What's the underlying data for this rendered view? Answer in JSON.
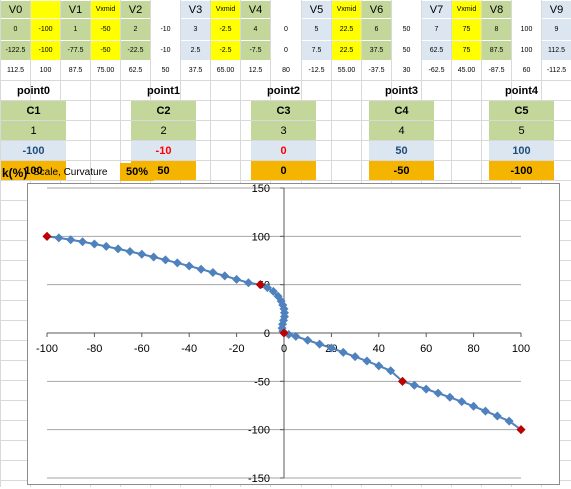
{
  "colors": {
    "green": "#c4d79b",
    "yellow": "#ffff00",
    "blue": "#dce6f1",
    "white": "#ffffff",
    "orange": "#f5b400",
    "gridline": "#d9d9d9",
    "series_blue": "#4f81bd",
    "marker_red": "#c00000",
    "neg_red": "#ff0000",
    "blue_text": "#1f4e79"
  },
  "vtable": {
    "headers": [
      "V0",
      "",
      "V1",
      "Vxmid",
      "V2",
      "",
      "V3",
      "Vxmid",
      "V4",
      "",
      "V5",
      "Vxmid",
      "V6",
      "",
      "V7",
      "Vxmid",
      "V8",
      "",
      "V9"
    ],
    "col_colors": [
      "green",
      "yellow",
      "green",
      "yellow",
      "green",
      "white",
      "blue",
      "yellow",
      "green",
      "white",
      "blue",
      "yellow",
      "green",
      "white",
      "blue",
      "yellow",
      "green",
      "white",
      "blue"
    ],
    "rows": [
      [
        "0",
        "-100",
        "1",
        "-50",
        "2",
        "-10",
        "3",
        "-2.5",
        "4",
        "0",
        "5",
        "22.5",
        "6",
        "50",
        "7",
        "75",
        "8",
        "100",
        "9"
      ],
      [
        "-122.5",
        "-100",
        "-77.5",
        "-50",
        "-22.5",
        "-10",
        "2.5",
        "-2.5",
        "-7.5",
        "0",
        "7.5",
        "22.5",
        "37.5",
        "50",
        "62.5",
        "75",
        "87.5",
        "100",
        "112.5"
      ],
      [
        "112.5",
        "100",
        "87.5",
        "75.00",
        "62.5",
        "50",
        "37.5",
        "65.00",
        "12.5",
        "80",
        "-12.5",
        "55.00",
        "-37.5",
        "30",
        "-62.5",
        "45.00",
        "-87.5",
        "60",
        "-112.5"
      ]
    ]
  },
  "points": [
    {
      "name": "point0",
      "c": "C1",
      "idx": "1",
      "x": "-100",
      "y": "100",
      "x_color": "blue_text"
    },
    {
      "name": "point1",
      "c": "C2",
      "idx": "2",
      "x": "-10",
      "y": "50",
      "x_color": "neg_red"
    },
    {
      "name": "point2",
      "c": "C3",
      "idx": "3",
      "x": "0",
      "y": "0",
      "x_color": "neg_red"
    },
    {
      "name": "point3",
      "c": "C4",
      "idx": "4",
      "x": "50",
      "y": "-50",
      "x_color": "blue_text"
    },
    {
      "name": "point4",
      "c": "C5",
      "idx": "5",
      "x": "100",
      "y": "-100",
      "x_color": "blue_text"
    }
  ],
  "k_control": {
    "label": "k(%)",
    "description": "Scale, Curvature",
    "value": "50%"
  },
  "chart_data": {
    "type": "scatter",
    "xlim": [
      -100,
      100
    ],
    "ylim": [
      -150,
      150
    ],
    "xticks": [
      "-100",
      "-80",
      "-60",
      "-40",
      "-20",
      "0",
      "20",
      "40",
      "60",
      "80",
      "100"
    ],
    "yticks": [
      "150",
      "100",
      "50",
      "0",
      "-50",
      "-100",
      "-150"
    ],
    "grid": "horizontal",
    "control_points": [
      [
        -100,
        100
      ],
      [
        -10,
        50
      ],
      [
        0,
        0
      ],
      [
        50,
        -50
      ],
      [
        100,
        -100
      ]
    ],
    "series": [
      {
        "marker": "diamond",
        "points": [
          [
            -100,
            100
          ],
          [
            -95,
            98.4
          ],
          [
            -90,
            96.5
          ],
          [
            -85,
            94.4
          ],
          [
            -80,
            92.1
          ],
          [
            -75,
            89.6
          ],
          [
            -70,
            87
          ],
          [
            -65,
            84.3
          ],
          [
            -60,
            81.5
          ],
          [
            -55,
            78.6
          ],
          [
            -50,
            75.6
          ],
          [
            -45,
            72.5
          ],
          [
            -40,
            69.3
          ],
          [
            -35,
            66
          ],
          [
            -30,
            62.6
          ],
          [
            -25,
            59.1
          ],
          [
            -20,
            55.5
          ],
          [
            -15,
            52
          ],
          [
            -10,
            50
          ],
          [
            -7,
            47
          ],
          [
            -4.5,
            43
          ],
          [
            -2.5,
            38
          ],
          [
            -1.2,
            33
          ],
          [
            -0.5,
            29
          ],
          [
            0,
            25
          ],
          [
            0.2,
            21
          ],
          [
            0.2,
            17
          ],
          [
            -0.2,
            13
          ],
          [
            -0.6,
            9
          ],
          [
            -0.8,
            5
          ],
          [
            -0.5,
            2
          ],
          [
            0,
            0
          ],
          [
            2,
            -1.5
          ],
          [
            5,
            -3.5
          ],
          [
            10,
            -7.5
          ],
          [
            15,
            -11.5
          ],
          [
            20,
            -15.5
          ],
          [
            25,
            -20
          ],
          [
            30,
            -24.5
          ],
          [
            35,
            -29
          ],
          [
            40,
            -34
          ],
          [
            45,
            -39
          ],
          [
            50,
            -50
          ],
          [
            55,
            -54
          ],
          [
            60,
            -58
          ],
          [
            65,
            -62.2
          ],
          [
            70,
            -66.5
          ],
          [
            75,
            -71
          ],
          [
            80,
            -75.8
          ],
          [
            85,
            -80.8
          ],
          [
            90,
            -85.9
          ],
          [
            95,
            -91.1
          ],
          [
            100,
            -100
          ]
        ]
      }
    ]
  }
}
